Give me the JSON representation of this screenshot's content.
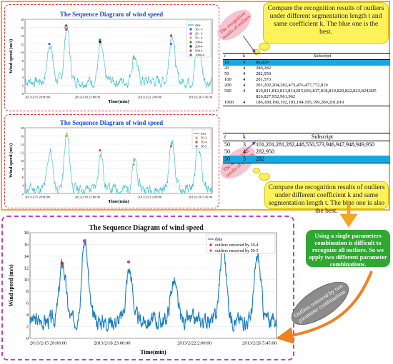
{
  "chart1": {
    "title": "The Sequence Diagram of wind speed",
    "ylabel": "Wind speed (m/s)",
    "xlabel": "Time(min)",
    "yticks": [
      "0",
      "2",
      "4",
      "6",
      "8",
      "10",
      "12",
      "14",
      "16",
      "18"
    ],
    "xticks": [
      "2013/2/15 20:00:00",
      "2013/2/18 23:00:00",
      "2013/2/22 2:00:00",
      "2013/2/26 5:45:00"
    ],
    "legend": [
      "data",
      "10 - 4",
      "20 - 4",
      "50 - 4",
      "100-4",
      "200-4",
      "500-4",
      "1000-4"
    ],
    "legend_colors": [
      "#22b8c0",
      "#3050ff",
      "#c040c0",
      "#e0a020",
      "#20a020",
      "#202020",
      "#e04040",
      "#8040e0"
    ]
  },
  "chart2": {
    "title": "The Sequence Diagram of wind speed",
    "ylabel": "Wind speed (m/s)",
    "xlabel": "Time(min)",
    "yticks": [
      "2",
      "4",
      "6",
      "8",
      "10",
      "12",
      "14",
      "16",
      "18"
    ],
    "xticks": [
      "2013/2/15 20:00:00",
      "2013/2/18 23:00:00",
      "2013/2/22 2:00:00",
      "2013/2/26 5:45:00"
    ],
    "legend": [
      "data",
      "50-3",
      "50-4",
      "50-5"
    ],
    "legend_colors": [
      "#22b8c0",
      "#e0a020",
      "#e04040",
      "#888888"
    ]
  },
  "chart3": {
    "title": "The Sequence Diagram of wind speed",
    "ylabel": "Wind speed (m/s)",
    "xlabel": "Time(min)",
    "yticks": [
      "0",
      "2",
      "4",
      "6",
      "8",
      "10",
      "12",
      "14",
      "16",
      "18"
    ],
    "xticks": [
      "2013/2/15 20:00:00",
      "2013/2/18 23:00:00",
      "2013/2/22 2:00:00",
      "2013/2/26 5:45:00"
    ],
    "legend": [
      "data",
      "outliers removed by 10-4",
      "outliers removed by 50-5"
    ],
    "legend_colors": [
      "#1a7fc0",
      "#e02020",
      "#c040c0"
    ]
  },
  "callout_top": "Compare the recognition results of outliers under different segmentation length t and same coefficient k. The blue one is the best.",
  "callout_bottom": "Compare the recognition results of outliers under different coefficient k and same segmentation length t. The blue one is also the best.",
  "table1": {
    "headers": [
      "t",
      "k",
      "Subscript"
    ],
    "rows": [
      {
        "t": "10",
        "k": "4",
        "s": "86,819",
        "hl": true
      },
      {
        "t": "20",
        "k": "4",
        "s": "280,282"
      },
      {
        "t": "50",
        "k": "4",
        "s": "282,950"
      },
      {
        "t": "100",
        "k": "4",
        "s": "201,573"
      },
      {
        "t": "200",
        "k": "4",
        "s": "201,202,204,282,475,476,477,772,819"
      },
      {
        "t": "500",
        "k": "4",
        "s": "810,811,812,813,814,815,816,817,818,819,820,822,823,824,825 826,827,952,961,962"
      },
      {
        "t": "1000",
        "k": "4",
        "s": "186,189,190,192,193,194,195,199,200,201,819"
      }
    ]
  },
  "table2": {
    "headers": [
      "t",
      "k",
      "Subscript"
    ],
    "rows": [
      {
        "t": "50",
        "k": "3",
        "s": "101,201,281,282,448,550,573,946,947,948,949,950"
      },
      {
        "t": "50",
        "k": "4",
        "s": "282,950"
      },
      {
        "t": "50",
        "k": "5",
        "s": "282",
        "hl": true
      }
    ]
  },
  "green_box": "Using a single parameters combination is difficult to recognize all outliers. So we apply two different parameter combinations.",
  "grey_ellipse": "Outliers removed by two parameter combinations",
  "pink1": "The recognition results of outliers",
  "pink2": "The recognition results of outliers"
}
